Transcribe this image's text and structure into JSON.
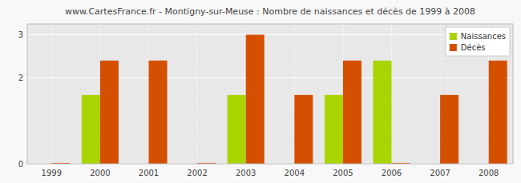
{
  "chart_data": {
    "type": "bar",
    "title": "www.CartesFrance.fr - Montigny-sur-Meuse : Nombre de naissances et décès de 1999 à 2008",
    "categories": [
      "1999",
      "2000",
      "2001",
      "2002",
      "2003",
      "2004",
      "2005",
      "2006",
      "2007",
      "2008"
    ],
    "series": [
      {
        "name": "Naissances",
        "color": "#aad400",
        "values": [
          0,
          1.6,
          0,
          0,
          1.6,
          0,
          1.6,
          2.4,
          0,
          0
        ]
      },
      {
        "name": "Décès",
        "color": "#d45000",
        "values": [
          0.02,
          2.4,
          2.4,
          0.02,
          3.0,
          1.6,
          2.4,
          0.02,
          1.6,
          2.4
        ]
      }
    ],
    "ylim": [
      0,
      3.25
    ],
    "yticks": [
      0,
      2,
      3
    ],
    "grid": true,
    "legend": "upper right"
  }
}
